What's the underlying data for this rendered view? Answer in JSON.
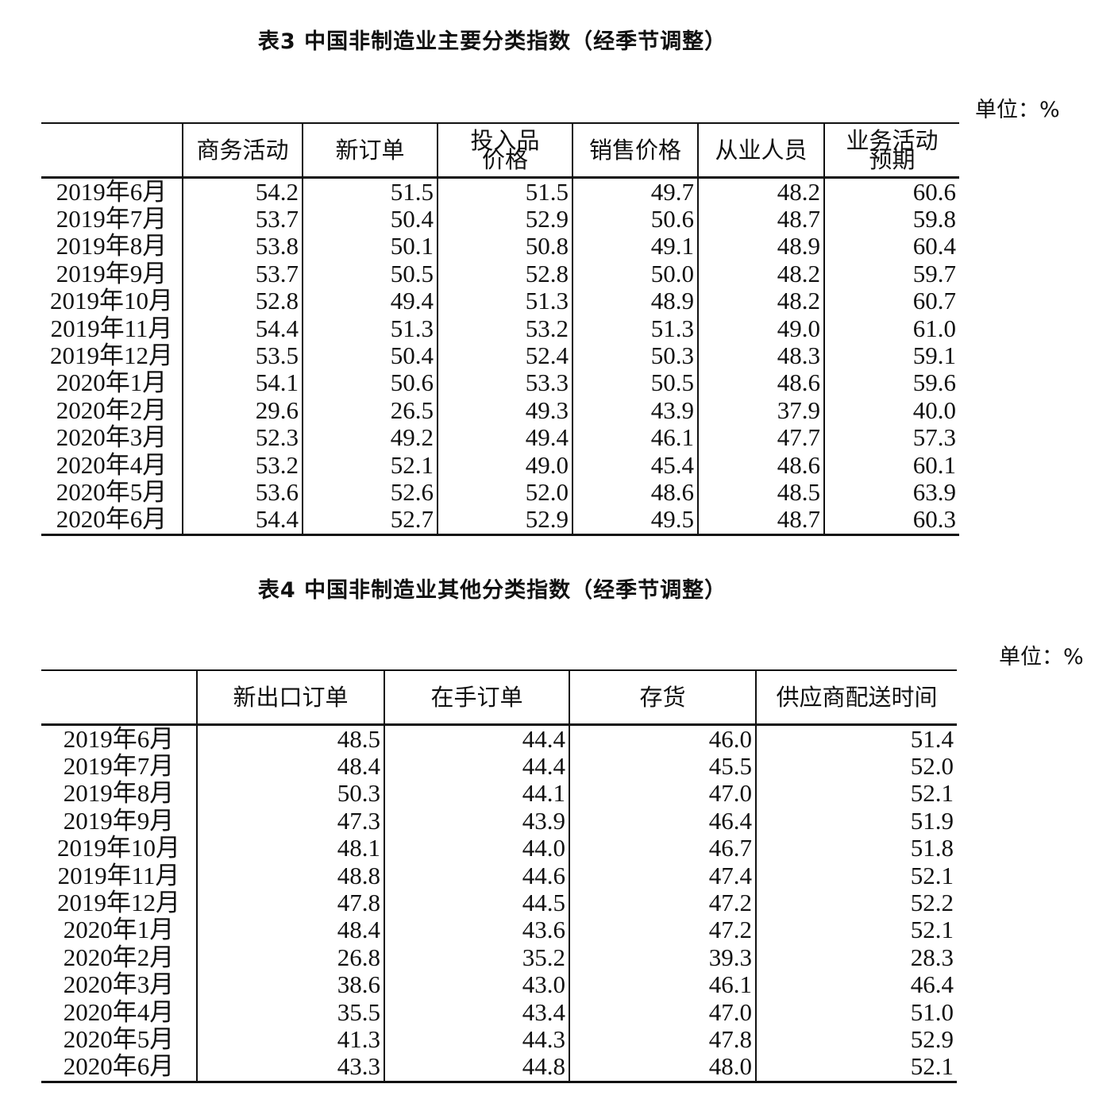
{
  "table3": {
    "title": "表3 中国非制造业主要分类指数（经季节调整）",
    "unit": "单位：%",
    "headers": [
      [
        ""
      ],
      [
        "商务活动"
      ],
      [
        "新订单"
      ],
      [
        "投入品",
        "价格"
      ],
      [
        "销售价格"
      ],
      [
        "从业人员"
      ],
      [
        "业务活动",
        "预期"
      ]
    ],
    "rows": [
      [
        "2019年6月",
        "54.2",
        "51.5",
        "51.5",
        "49.7",
        "48.2",
        "60.6"
      ],
      [
        "2019年7月",
        "53.7",
        "50.4",
        "52.9",
        "50.6",
        "48.7",
        "59.8"
      ],
      [
        "2019年8月",
        "53.8",
        "50.1",
        "50.8",
        "49.1",
        "48.9",
        "60.4"
      ],
      [
        "2019年9月",
        "53.7",
        "50.5",
        "52.8",
        "50.0",
        "48.2",
        "59.7"
      ],
      [
        "2019年10月",
        "52.8",
        "49.4",
        "51.3",
        "48.9",
        "48.2",
        "60.7"
      ],
      [
        "2019年11月",
        "54.4",
        "51.3",
        "53.2",
        "51.3",
        "49.0",
        "61.0"
      ],
      [
        "2019年12月",
        "53.5",
        "50.4",
        "52.4",
        "50.3",
        "48.3",
        "59.1"
      ],
      [
        "2020年1月",
        "54.1",
        "50.6",
        "53.3",
        "50.5",
        "48.6",
        "59.6"
      ],
      [
        "2020年2月",
        "29.6",
        "26.5",
        "49.3",
        "43.9",
        "37.9",
        "40.0"
      ],
      [
        "2020年3月",
        "52.3",
        "49.2",
        "49.4",
        "46.1",
        "47.7",
        "57.3"
      ],
      [
        "2020年4月",
        "53.2",
        "52.1",
        "49.0",
        "45.4",
        "48.6",
        "60.1"
      ],
      [
        "2020年5月",
        "53.6",
        "52.6",
        "52.0",
        "48.6",
        "48.5",
        "63.9"
      ],
      [
        "2020年6月",
        "54.4",
        "52.7",
        "52.9",
        "49.5",
        "48.7",
        "60.3"
      ]
    ]
  },
  "table4": {
    "title": "表4 中国非制造业其他分类指数（经季节调整）",
    "unit": "单位：%",
    "headers": [
      [
        ""
      ],
      [
        "新出口订单"
      ],
      [
        "在手订单"
      ],
      [
        "存货"
      ],
      [
        "供应商配送时间"
      ]
    ],
    "rows": [
      [
        "2019年6月",
        "48.5",
        "44.4",
        "46.0",
        "51.4"
      ],
      [
        "2019年7月",
        "48.4",
        "44.4",
        "45.5",
        "52.0"
      ],
      [
        "2019年8月",
        "50.3",
        "44.1",
        "47.0",
        "52.1"
      ],
      [
        "2019年9月",
        "47.3",
        "43.9",
        "46.4",
        "51.9"
      ],
      [
        "2019年10月",
        "48.1",
        "44.0",
        "46.7",
        "51.8"
      ],
      [
        "2019年11月",
        "48.8",
        "44.6",
        "47.4",
        "52.1"
      ],
      [
        "2019年12月",
        "47.8",
        "44.5",
        "47.2",
        "52.2"
      ],
      [
        "2020年1月",
        "48.4",
        "43.6",
        "47.2",
        "52.1"
      ],
      [
        "2020年2月",
        "26.8",
        "35.2",
        "39.3",
        "28.3"
      ],
      [
        "2020年3月",
        "38.6",
        "43.0",
        "46.1",
        "46.4"
      ],
      [
        "2020年4月",
        "35.5",
        "43.4",
        "47.0",
        "51.0"
      ],
      [
        "2020年5月",
        "41.3",
        "44.3",
        "47.8",
        "52.9"
      ],
      [
        "2020年6月",
        "43.3",
        "44.8",
        "48.0",
        "52.1"
      ]
    ]
  }
}
